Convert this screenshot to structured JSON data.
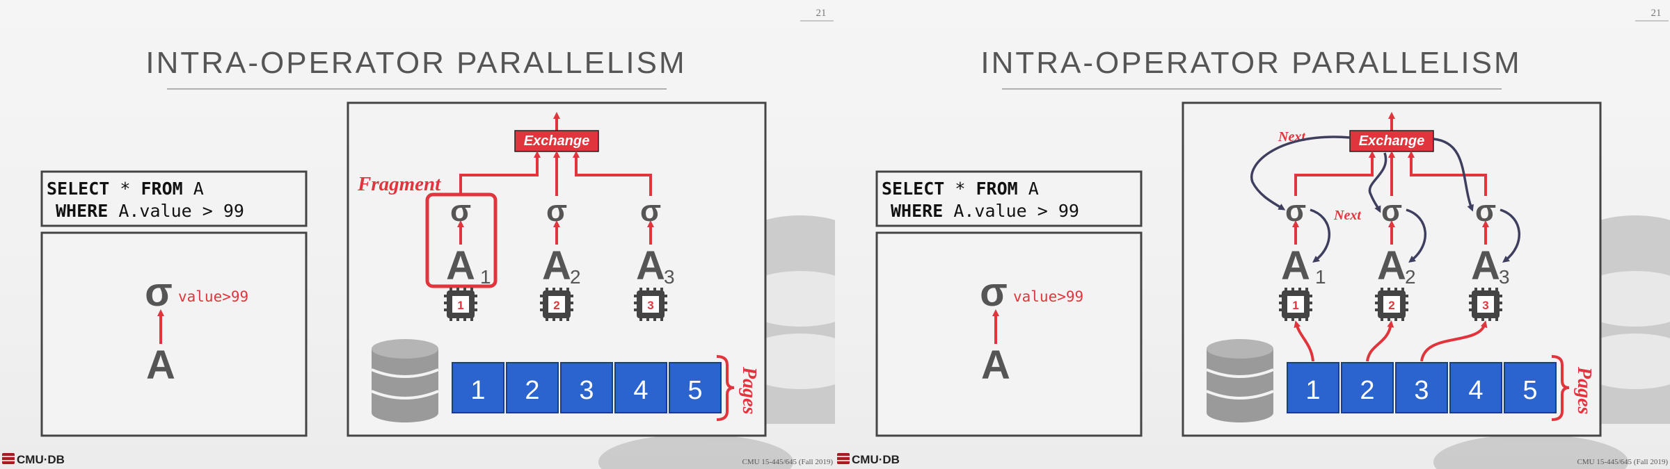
{
  "colors": {
    "accent_red": "#e0353d",
    "page_blue": "#2b64cf",
    "dark_arrow": "#3e3f5e",
    "icon_gray": "#555555"
  },
  "slides": [
    {
      "page_number": "21",
      "title": "INTRA-OPERATOR PARALLELISM",
      "sql_line1_kw1": "SELECT",
      "sql_line1_mid": " * ",
      "sql_line1_kw2": "FROM",
      "sql_line1_rest": " A",
      "sql_line2_kw": "WHERE",
      "sql_line2_rest": " A.value > 99",
      "plan_sigma": "σ",
      "plan_predicate": "value>99",
      "plan_table": "A",
      "exchange_label": "Exchange",
      "fragment_label": "Fragment",
      "workers": [
        {
          "sigma": "σ",
          "table": "A",
          "subscript": "1",
          "core": "1"
        },
        {
          "sigma": "σ",
          "table": "A",
          "subscript": "2",
          "core": "2"
        },
        {
          "sigma": "σ",
          "table": "A",
          "subscript": "3",
          "core": "3"
        }
      ],
      "pages": [
        "1",
        "2",
        "3",
        "4",
        "5"
      ],
      "pages_label": "Pages",
      "footer_brand": "CMU·DB",
      "footer_course": "CMU 15-445/645 (Fall 2019)"
    },
    {
      "page_number": "21",
      "title": "INTRA-OPERATOR PARALLELISM",
      "sql_line1_kw1": "SELECT",
      "sql_line1_mid": " * ",
      "sql_line1_kw2": "FROM",
      "sql_line1_rest": " A",
      "sql_line2_kw": "WHERE",
      "sql_line2_rest": " A.value > 99",
      "plan_sigma": "σ",
      "plan_predicate": "value>99",
      "plan_table": "A",
      "exchange_label": "Exchange",
      "next_label_1": "Next",
      "next_label_2": "Next",
      "workers": [
        {
          "sigma": "σ",
          "table": "A",
          "subscript": "1",
          "core": "1"
        },
        {
          "sigma": "σ",
          "table": "A",
          "subscript": "2",
          "core": "2"
        },
        {
          "sigma": "σ",
          "table": "A",
          "subscript": "3",
          "core": "3"
        }
      ],
      "pages": [
        "1",
        "2",
        "3",
        "4",
        "5"
      ],
      "pages_label": "Pages",
      "footer_brand": "CMU·DB",
      "footer_course": "CMU 15-445/645 (Fall 2019)"
    }
  ]
}
